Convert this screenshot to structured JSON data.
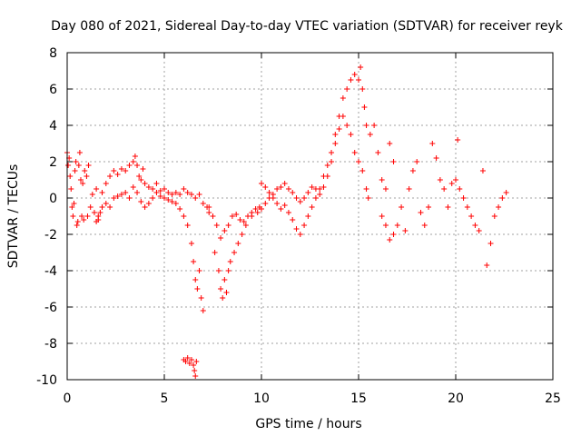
{
  "chart_data": {
    "type": "scatter",
    "title": "Day 080 of 2021, Sidereal Day-to-day VTEC variation (SDTVAR) for receiver reyk",
    "xlabel": "GPS time / hours",
    "ylabel": "SDTVAR / TECUs",
    "xlim": [
      0,
      25
    ],
    "ylim": [
      -10,
      8
    ],
    "xticks": [
      0,
      5,
      10,
      15,
      20,
      25
    ],
    "yticks": [
      -10,
      -8,
      -6,
      -4,
      -2,
      0,
      2,
      4,
      6,
      8
    ],
    "xtick_labels": [
      "0",
      "5",
      "10",
      "15",
      "20",
      "25"
    ],
    "ytick_labels": [
      "-10",
      "-8",
      "-6",
      "-4",
      "-2",
      "0",
      "2",
      "4",
      "6",
      "8"
    ],
    "grid": true,
    "marker": "+",
    "color": "#ff0000",
    "series": [
      {
        "name": "SDTVAR",
        "points": [
          [
            0.0,
            2.5
          ],
          [
            0.05,
            1.8
          ],
          [
            0.1,
            2.2
          ],
          [
            0.15,
            1.2
          ],
          [
            0.2,
            0.5
          ],
          [
            0.25,
            -0.5
          ],
          [
            0.3,
            -1.0
          ],
          [
            0.35,
            -0.3
          ],
          [
            0.4,
            1.5
          ],
          [
            0.45,
            2.0
          ],
          [
            0.5,
            -1.5
          ],
          [
            0.55,
            -1.3
          ],
          [
            0.6,
            1.8
          ],
          [
            0.65,
            2.5
          ],
          [
            0.7,
            1.0
          ],
          [
            0.75,
            -1.0
          ],
          [
            0.8,
            0.8
          ],
          [
            0.85,
            -1.2
          ],
          [
            0.9,
            1.5
          ],
          [
            1.0,
            1.2
          ],
          [
            1.05,
            -1.0
          ],
          [
            1.1,
            1.8
          ],
          [
            1.2,
            -0.5
          ],
          [
            1.3,
            0.2
          ],
          [
            1.4,
            -0.8
          ],
          [
            1.5,
            -1.3
          ],
          [
            1.6,
            -1.0
          ],
          [
            1.7,
            -0.8
          ],
          [
            1.8,
            -0.5
          ],
          [
            1.5,
            0.5
          ],
          [
            1.8,
            0.3
          ],
          [
            2.0,
            0.8
          ],
          [
            2.2,
            1.2
          ],
          [
            2.4,
            1.5
          ],
          [
            2.6,
            1.3
          ],
          [
            2.8,
            1.6
          ],
          [
            3.0,
            1.5
          ],
          [
            3.2,
            1.8
          ],
          [
            3.4,
            2.0
          ],
          [
            3.5,
            2.3
          ],
          [
            3.6,
            1.8
          ],
          [
            3.7,
            1.2
          ],
          [
            3.8,
            1.0
          ],
          [
            3.9,
            1.6
          ],
          [
            4.0,
            0.8
          ],
          [
            4.2,
            0.6
          ],
          [
            4.4,
            0.5
          ],
          [
            4.6,
            0.8
          ],
          [
            1.6,
            -1.2
          ],
          [
            1.8,
            -0.5
          ],
          [
            2.0,
            -0.3
          ],
          [
            2.2,
            -0.5
          ],
          [
            2.4,
            0.0
          ],
          [
            2.6,
            0.1
          ],
          [
            2.8,
            0.2
          ],
          [
            3.0,
            0.3
          ],
          [
            3.2,
            0.0
          ],
          [
            3.4,
            0.6
          ],
          [
            3.6,
            0.3
          ],
          [
            3.8,
            -0.2
          ],
          [
            4.0,
            -0.5
          ],
          [
            4.2,
            -0.3
          ],
          [
            4.4,
            0.0
          ],
          [
            4.6,
            0.3
          ],
          [
            4.8,
            0.4
          ],
          [
            5.0,
            0.5
          ],
          [
            5.2,
            0.3
          ],
          [
            5.4,
            0.2
          ],
          [
            5.6,
            0.3
          ],
          [
            5.8,
            0.2
          ],
          [
            6.0,
            0.5
          ],
          [
            6.2,
            0.3
          ],
          [
            6.4,
            0.2
          ],
          [
            6.6,
            0.0
          ],
          [
            6.8,
            0.2
          ],
          [
            7.0,
            -0.3
          ],
          [
            7.2,
            -0.5
          ],
          [
            7.3,
            -0.8
          ],
          [
            4.8,
            0.1
          ],
          [
            5.0,
            0.0
          ],
          [
            5.2,
            -0.1
          ],
          [
            5.4,
            -0.2
          ],
          [
            5.6,
            -0.3
          ],
          [
            5.8,
            -0.6
          ],
          [
            6.0,
            -1.0
          ],
          [
            6.2,
            -1.5
          ],
          [
            6.4,
            -2.5
          ],
          [
            6.5,
            -3.5
          ],
          [
            6.6,
            -4.5
          ],
          [
            6.7,
            -5.0
          ],
          [
            6.8,
            -4.0
          ],
          [
            6.9,
            -5.5
          ],
          [
            7.0,
            -6.2
          ],
          [
            6.0,
            -8.9
          ],
          [
            6.1,
            -9.0
          ],
          [
            6.2,
            -8.8
          ],
          [
            6.3,
            -9.1
          ],
          [
            6.4,
            -8.9
          ],
          [
            6.5,
            -9.2
          ],
          [
            6.55,
            -9.5
          ],
          [
            6.6,
            -9.8
          ],
          [
            6.65,
            -9.0
          ],
          [
            7.3,
            -0.5
          ],
          [
            7.5,
            -1.0
          ],
          [
            7.7,
            -1.5
          ],
          [
            7.9,
            -2.2
          ],
          [
            8.1,
            -1.8
          ],
          [
            8.3,
            -1.5
          ],
          [
            8.5,
            -1.0
          ],
          [
            8.7,
            -0.9
          ],
          [
            8.9,
            -1.2
          ],
          [
            9.1,
            -1.3
          ],
          [
            9.3,
            -1.0
          ],
          [
            9.5,
            -0.8
          ],
          [
            9.7,
            -0.6
          ],
          [
            9.9,
            -0.5
          ],
          [
            7.6,
            -3.0
          ],
          [
            7.8,
            -4.0
          ],
          [
            7.9,
            -5.0
          ],
          [
            8.0,
            -5.5
          ],
          [
            8.1,
            -4.5
          ],
          [
            8.2,
            -5.2
          ],
          [
            8.3,
            -4.0
          ],
          [
            8.4,
            -3.5
          ],
          [
            8.6,
            -3.0
          ],
          [
            8.8,
            -2.5
          ],
          [
            9.0,
            -2.0
          ],
          [
            9.2,
            -1.5
          ],
          [
            9.5,
            -1.0
          ],
          [
            9.8,
            -0.8
          ],
          [
            10.0,
            -0.6
          ],
          [
            10.2,
            -0.3
          ],
          [
            10.4,
            0.0
          ],
          [
            10.6,
            0.2
          ],
          [
            10.8,
            0.5
          ],
          [
            11.0,
            0.6
          ],
          [
            11.2,
            0.8
          ],
          [
            11.4,
            0.5
          ],
          [
            11.6,
            0.3
          ],
          [
            11.8,
            0.0
          ],
          [
            12.0,
            -0.2
          ],
          [
            12.2,
            0.0
          ],
          [
            12.4,
            0.3
          ],
          [
            12.6,
            0.6
          ],
          [
            12.8,
            0.5
          ],
          [
            10.0,
            0.8
          ],
          [
            10.2,
            0.6
          ],
          [
            10.4,
            0.3
          ],
          [
            10.6,
            0.0
          ],
          [
            10.8,
            -0.3
          ],
          [
            11.0,
            -0.6
          ],
          [
            11.2,
            -0.4
          ],
          [
            11.4,
            -0.8
          ],
          [
            11.6,
            -1.2
          ],
          [
            11.8,
            -1.7
          ],
          [
            12.0,
            -2.0
          ],
          [
            12.2,
            -1.5
          ],
          [
            12.4,
            -1.0
          ],
          [
            12.6,
            -0.5
          ],
          [
            12.8,
            0.0
          ],
          [
            13.0,
            0.5
          ],
          [
            13.2,
            1.2
          ],
          [
            13.4,
            1.8
          ],
          [
            13.6,
            2.5
          ],
          [
            13.8,
            3.5
          ],
          [
            14.0,
            4.5
          ],
          [
            14.2,
            5.5
          ],
          [
            14.4,
            6.0
          ],
          [
            14.6,
            6.5
          ],
          [
            14.8,
            6.8
          ],
          [
            15.0,
            6.5
          ],
          [
            15.1,
            7.2
          ],
          [
            15.2,
            6.0
          ],
          [
            15.3,
            5.0
          ],
          [
            15.4,
            4.0
          ],
          [
            13.0,
            0.2
          ],
          [
            13.2,
            0.6
          ],
          [
            13.4,
            1.2
          ],
          [
            13.6,
            2.0
          ],
          [
            13.8,
            3.0
          ],
          [
            14.0,
            3.8
          ],
          [
            14.2,
            4.5
          ],
          [
            14.4,
            4.0
          ],
          [
            14.6,
            3.5
          ],
          [
            14.8,
            2.5
          ],
          [
            15.0,
            2.0
          ],
          [
            15.2,
            1.5
          ],
          [
            15.4,
            0.5
          ],
          [
            15.5,
            0.0
          ],
          [
            15.6,
            3.5
          ],
          [
            15.8,
            4.0
          ],
          [
            16.0,
            2.5
          ],
          [
            16.2,
            1.0
          ],
          [
            16.4,
            0.5
          ],
          [
            16.6,
            3.0
          ],
          [
            16.8,
            2.0
          ],
          [
            16.2,
            -1.0
          ],
          [
            16.4,
            -1.5
          ],
          [
            16.6,
            -2.3
          ],
          [
            16.8,
            -2.0
          ],
          [
            17.0,
            -1.5
          ],
          [
            17.2,
            -0.5
          ],
          [
            17.4,
            -1.8
          ],
          [
            17.6,
            0.5
          ],
          [
            17.8,
            1.5
          ],
          [
            18.0,
            2.0
          ],
          [
            18.2,
            -0.8
          ],
          [
            18.4,
            -1.5
          ],
          [
            18.6,
            -0.5
          ],
          [
            18.8,
            3.0
          ],
          [
            19.0,
            2.2
          ],
          [
            19.2,
            1.0
          ],
          [
            19.4,
            0.5
          ],
          [
            19.6,
            -0.5
          ],
          [
            19.8,
            0.8
          ],
          [
            20.0,
            1.0
          ],
          [
            20.1,
            3.2
          ],
          [
            20.2,
            0.5
          ],
          [
            20.4,
            0.0
          ],
          [
            20.6,
            -0.5
          ],
          [
            20.8,
            -1.0
          ],
          [
            21.0,
            -1.5
          ],
          [
            21.2,
            -1.8
          ],
          [
            21.4,
            1.5
          ],
          [
            21.6,
            -3.7
          ],
          [
            21.8,
            -2.5
          ],
          [
            22.0,
            -1.0
          ],
          [
            22.2,
            -0.5
          ],
          [
            22.4,
            0.0
          ],
          [
            22.6,
            0.3
          ]
        ]
      }
    ]
  }
}
